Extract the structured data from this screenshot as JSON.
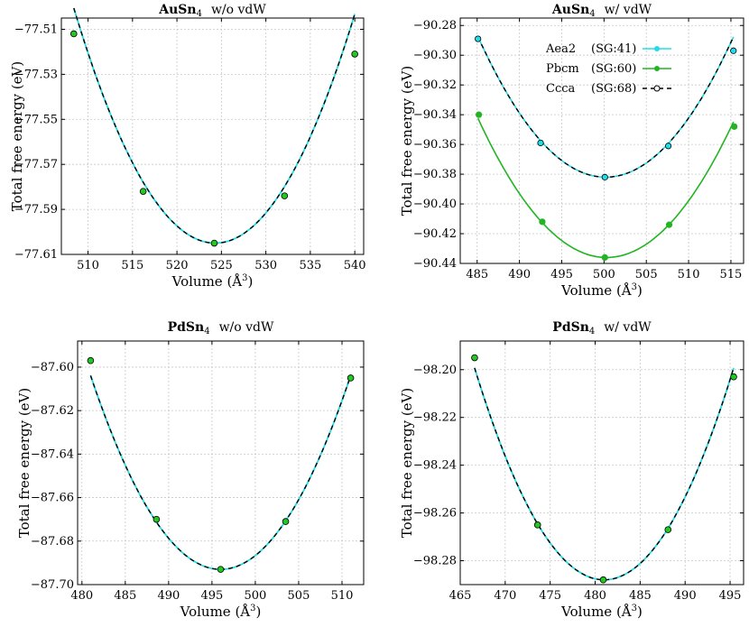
{
  "colors": {
    "aea2": "#22dde8",
    "pbcm": "#22b422",
    "ccca": "#000000",
    "green_marker": "#22c822"
  },
  "chart_data": [
    {
      "id": "aun-novdw",
      "type": "line",
      "title_bold": "AuSn",
      "title_sub": "4",
      "title_rest": "w/o vdW",
      "xlabel": "Volume (Å",
      "xlabel_sup": "3",
      "xlabel_end": ")",
      "ylabel": "Total free energy (eV)",
      "xlim": [
        507,
        541
      ],
      "ylim": [
        -77.61,
        -77.505
      ],
      "xticks": [
        510,
        515,
        520,
        525,
        530,
        535,
        540
      ],
      "yticks": [
        -77.51,
        -77.53,
        -77.55,
        -77.57,
        -77.59,
        -77.61
      ],
      "ytick_labels": [
        "−77.51",
        "−77.53",
        "−77.55",
        "−77.57",
        "−77.59",
        "−77.61"
      ],
      "fit": {
        "x0": 524.3,
        "e0": -77.605,
        "k": 0.000413
      },
      "series": [
        {
          "style": "green-solid",
          "x": [
            508.4,
            516.2,
            524.2,
            532.1,
            540.0
          ],
          "y": [
            -77.512,
            -77.582,
            -77.605,
            -77.584,
            -77.521
          ]
        }
      ]
    },
    {
      "id": "aun-vdw",
      "type": "line",
      "title_bold": "AuSn",
      "title_sub": "4",
      "title_rest": "w/ vdW",
      "xlabel": "Volume (Å",
      "xlabel_sup": "3",
      "xlabel_end": ")",
      "ylabel": "Total free energy (eV)",
      "xlim": [
        483,
        516.5
      ],
      "ylim": [
        -90.44,
        -90.275
      ],
      "xticks": [
        485,
        490,
        495,
        500,
        505,
        510,
        515
      ],
      "yticks": [
        -90.28,
        -90.3,
        -90.32,
        -90.34,
        -90.36,
        -90.38,
        -90.4,
        -90.42,
        -90.44
      ],
      "ytick_labels": [
        "−90.28",
        "−90.30",
        "−90.32",
        "−90.34",
        "−90.36",
        "−90.38",
        "−90.40",
        "−90.42",
        "−90.44"
      ],
      "legend": {
        "position": "top-right",
        "entries": [
          {
            "name": "Aea2",
            "sg": "(SG:41)",
            "style": "cyan"
          },
          {
            "name": "Pbcm",
            "sg": "(SG:60)",
            "style": "green"
          },
          {
            "name": "Ccca",
            "sg": "(SG:68)",
            "style": "dashed-black"
          }
        ]
      },
      "series": [
        {
          "style": "cyan-dashed",
          "name": "Aea2 / Ccca",
          "fit": {
            "x0": 500.2,
            "e0": -90.382,
            "k": 0.000414
          },
          "x": [
            485.1,
            492.5,
            500.1,
            507.6,
            515.3
          ],
          "y": [
            -90.289,
            -90.359,
            -90.382,
            -90.361,
            -90.297
          ]
        },
        {
          "style": "green",
          "name": "Pbcm",
          "fit": {
            "x0": 500.3,
            "e0": -90.436,
            "k": 0.000405
          },
          "x": [
            485.2,
            492.7,
            500.1,
            507.7,
            515.4
          ],
          "y": [
            -90.34,
            -90.412,
            -90.436,
            -90.414,
            -90.348
          ]
        }
      ]
    },
    {
      "id": "pdsn-novdw",
      "type": "line",
      "title_bold": "PdSn",
      "title_sub": "4",
      "title_rest": "w/o vdW",
      "xlabel": "Volume (Å",
      "xlabel_sup": "3",
      "xlabel_end": ")",
      "ylabel": "Total free energy (eV)",
      "xlim": [
        479.5,
        512.5
      ],
      "ylim": [
        -87.7,
        -87.588
      ],
      "xticks": [
        480,
        485,
        490,
        495,
        500,
        505,
        510
      ],
      "yticks": [
        -87.6,
        -87.62,
        -87.64,
        -87.66,
        -87.68,
        -87.7
      ],
      "ytick_labels": [
        "−87.60",
        "−87.62",
        "−87.64",
        "−87.66",
        "−87.68",
        "−87.70"
      ],
      "fit": {
        "x0": 496.0,
        "e0": -87.693,
        "k": 0.000396
      },
      "series": [
        {
          "style": "green-solid",
          "x": [
            481.0,
            488.6,
            496.0,
            503.5,
            511.0
          ],
          "y": [
            -87.597,
            -87.67,
            -87.693,
            -87.671,
            -87.605
          ]
        }
      ]
    },
    {
      "id": "pdsn-vdw",
      "type": "line",
      "title_bold": "PdSn",
      "title_sub": "4",
      "title_rest": "w/ vdW",
      "xlabel": "Volume (Å",
      "xlabel_sup": "3",
      "xlabel_end": ")",
      "ylabel": "Total free energy (eV)",
      "xlim": [
        465,
        496.5
      ],
      "ylim": [
        -98.29,
        -98.188
      ],
      "xticks": [
        465,
        470,
        475,
        480,
        485,
        490,
        495
      ],
      "yticks": [
        -98.2,
        -98.22,
        -98.24,
        -98.26,
        -98.28
      ],
      "ytick_labels": [
        "−98.20",
        "−98.22",
        "−98.24",
        "−98.26",
        "−98.28"
      ],
      "fit": {
        "x0": 481.0,
        "e0": -98.288,
        "k": 0.000428
      },
      "series": [
        {
          "style": "green-solid",
          "x": [
            466.6,
            473.6,
            480.9,
            488.1,
            495.4
          ],
          "y": [
            -98.195,
            -98.265,
            -98.288,
            -98.267,
            -98.203
          ]
        }
      ]
    }
  ]
}
